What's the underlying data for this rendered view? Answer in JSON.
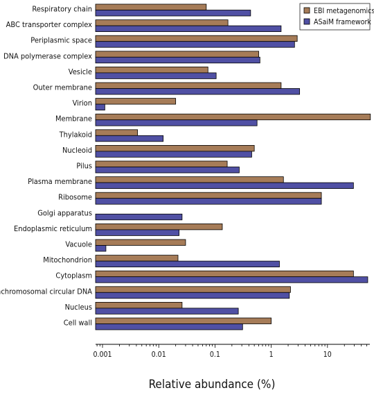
{
  "chart_data": {
    "type": "bar",
    "orientation": "horizontal",
    "scale": "log",
    "title": "",
    "xlabel": "Relative abundance (%)",
    "ylabel": "",
    "xlim": [
      0.001,
      60
    ],
    "xticks": [
      0.001,
      0.01,
      0.1,
      1,
      10
    ],
    "xtick_labels": [
      "0.001",
      "0.01",
      "0.1",
      "1",
      "10"
    ],
    "grid": false,
    "legend_position": "top-right",
    "categories": [
      "Respiratory chain",
      "ABC transporter complex",
      "Periplasmic space",
      "DNA polymerase complex",
      "Vesicle",
      "Outer membrane",
      "Virion",
      "Membrane",
      "Thylakoid",
      "Nucleoid",
      "Pilus",
      "Plasma membrane",
      "Ribosome",
      "Golgi apparatus",
      "Endoplasmic reticulum",
      "Vacuole",
      "Mitochondrion",
      "Cytoplasm",
      "Extrachromosomal circular DNA",
      "Nucleus",
      "Cell wall"
    ],
    "series": [
      {
        "name": "EBI metagenomics",
        "color": "#a67c58",
        "values": [
          0.07,
          0.17,
          2.9,
          0.6,
          0.075,
          1.5,
          0.02,
          58,
          0.0042,
          0.5,
          0.165,
          1.65,
          7.8,
          null,
          0.135,
          0.03,
          0.022,
          29,
          2.2,
          0.026,
          1.0
        ]
      },
      {
        "name": "ASaiM framework",
        "color": "#5050a4",
        "values": [
          0.43,
          1.5,
          2.6,
          0.63,
          0.105,
          3.2,
          0.0011,
          0.56,
          0.012,
          0.45,
          0.27,
          29,
          7.8,
          0.026,
          0.023,
          0.00115,
          1.4,
          52,
          2.1,
          0.26,
          0.31
        ]
      }
    ]
  }
}
